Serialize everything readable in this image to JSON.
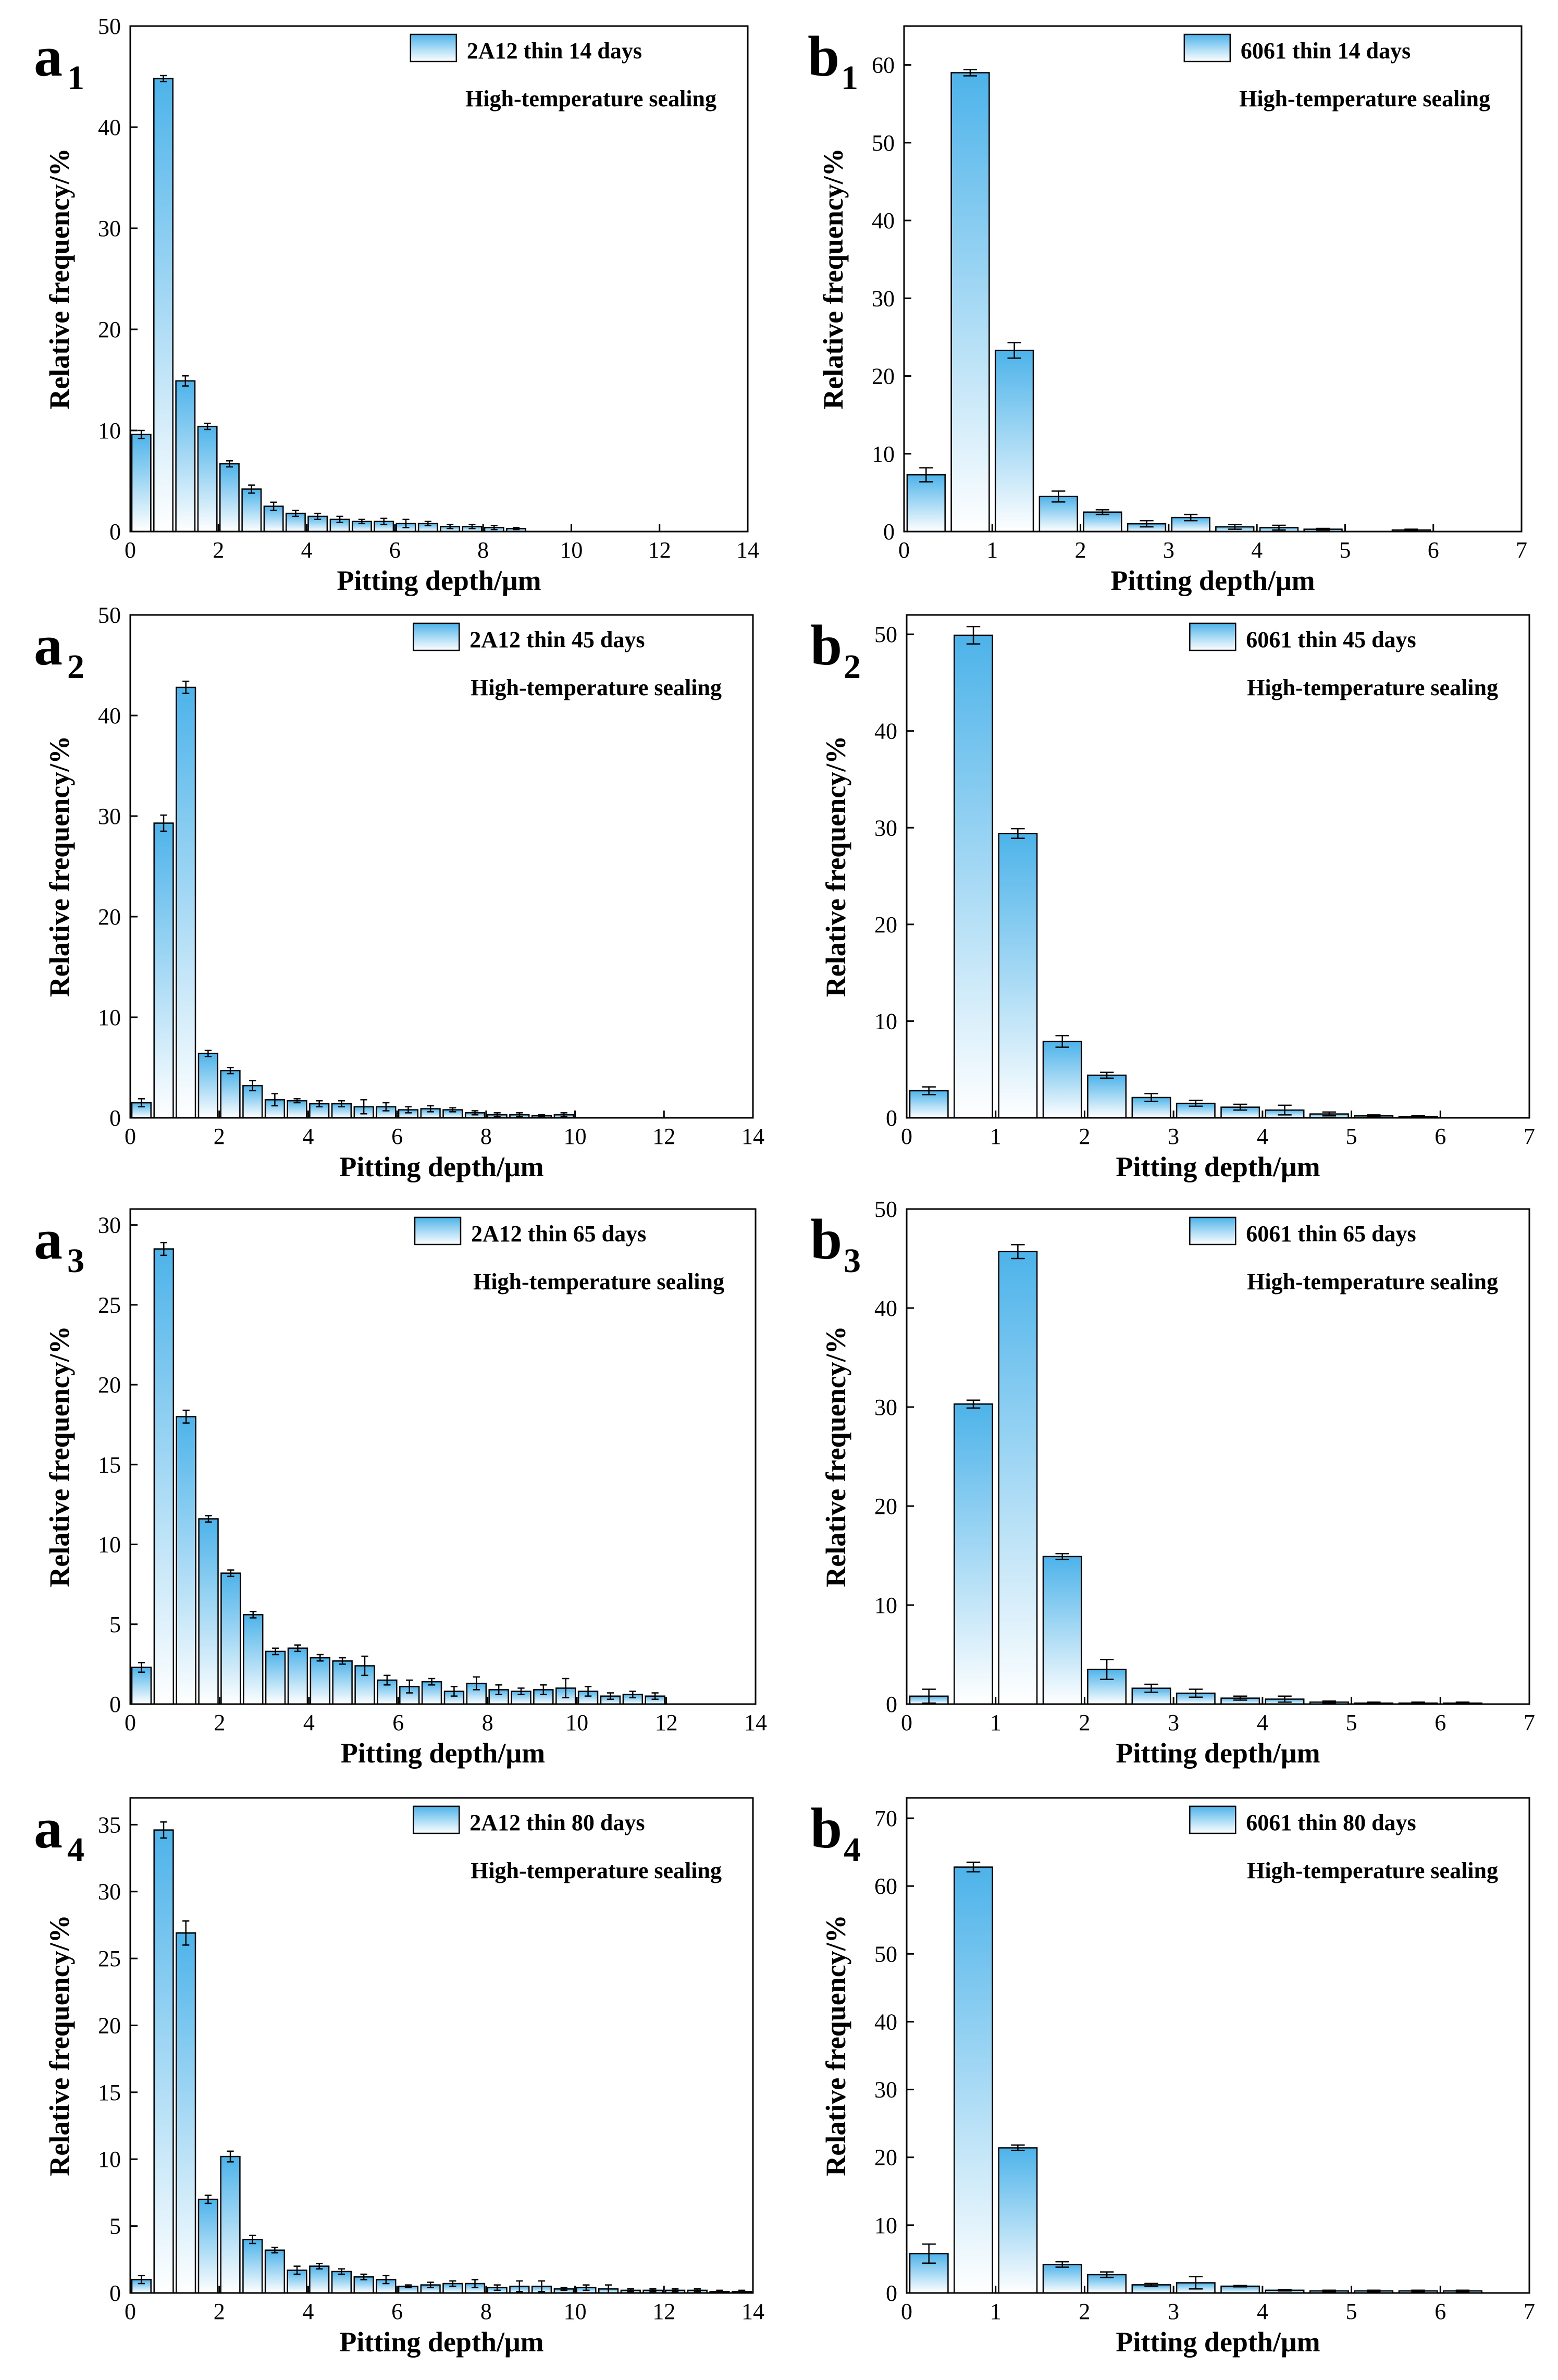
{
  "styles": {
    "bar_top_color": "#4db3ea",
    "bar_bottom_color": "#ffffff",
    "axis_color": "#000000"
  },
  "chart_data": [
    {
      "type": "bar",
      "panel": "a",
      "panel_sub": "1",
      "legend": "2A12 thin  14 days",
      "annotation": "High-temperature sealing",
      "xlabel": "Pitting depth/μm",
      "ylabel": "Relative frequency/%",
      "xlim": [
        0,
        14
      ],
      "ylim": [
        0,
        50
      ],
      "xticks": [
        0,
        2,
        4,
        6,
        8,
        10,
        12,
        14
      ],
      "yticks": [
        0,
        10,
        20,
        30,
        40,
        50
      ],
      "bin_width": 0.5,
      "x": [
        0.25,
        0.75,
        1.25,
        1.75,
        2.25,
        2.75,
        3.25,
        3.75,
        4.25,
        4.75,
        5.25,
        5.75,
        6.25,
        6.75,
        7.25,
        7.75,
        8.25,
        8.75
      ],
      "values": [
        9.6,
        44.8,
        14.9,
        10.4,
        6.7,
        4.2,
        2.5,
        1.8,
        1.5,
        1.2,
        1.0,
        1.0,
        0.8,
        0.8,
        0.5,
        0.5,
        0.4,
        0.3
      ],
      "errors": [
        0.4,
        0.3,
        0.5,
        0.3,
        0.3,
        0.4,
        0.4,
        0.3,
        0.3,
        0.3,
        0.2,
        0.3,
        0.4,
        0.2,
        0.2,
        0.2,
        0.2,
        0.1
      ]
    },
    {
      "type": "bar",
      "panel": "b",
      "panel_sub": "1",
      "legend": "6061 thin  14 days",
      "annotation": "High-temperature sealing",
      "xlabel": "Pitting depth/μm",
      "ylabel": "Relative frequency/%",
      "xlim": [
        0,
        7
      ],
      "ylim": [
        0,
        65
      ],
      "xticks": [
        0,
        1,
        2,
        3,
        4,
        5,
        6,
        7
      ],
      "yticks": [
        0,
        10,
        20,
        30,
        40,
        50,
        60
      ],
      "bin_width": 0.5,
      "x": [
        0.25,
        0.75,
        1.25,
        1.75,
        2.25,
        2.75,
        3.25,
        3.75,
        4.25,
        4.75,
        5.25,
        5.75
      ],
      "values": [
        7.3,
        59.0,
        23.3,
        4.5,
        2.5,
        1.0,
        1.8,
        0.6,
        0.5,
        0.3,
        0.0,
        0.2
      ],
      "errors": [
        0.9,
        0.4,
        1.0,
        0.7,
        0.3,
        0.4,
        0.4,
        0.3,
        0.3,
        0.1,
        0.0,
        0.1
      ]
    },
    {
      "type": "bar",
      "panel": "a",
      "panel_sub": "2",
      "legend": "2A12 thin  45 days",
      "annotation": "High-temperature sealing",
      "xlabel": "Pitting depth/μm",
      "ylabel": "Relative frequency/%",
      "xlim": [
        0,
        14
      ],
      "ylim": [
        0,
        50
      ],
      "xticks": [
        0,
        2,
        4,
        6,
        8,
        10,
        12,
        14
      ],
      "yticks": [
        0,
        10,
        20,
        30,
        40,
        50
      ],
      "bin_width": 0.5,
      "x": [
        0.25,
        0.75,
        1.25,
        1.75,
        2.25,
        2.75,
        3.25,
        3.75,
        4.25,
        4.75,
        5.25,
        5.75,
        6.25,
        6.75,
        7.25,
        7.75,
        8.25,
        8.75,
        9.25,
        9.75
      ],
      "values": [
        1.5,
        29.3,
        42.8,
        6.4,
        4.7,
        3.2,
        1.8,
        1.7,
        1.4,
        1.4,
        1.1,
        1.1,
        0.8,
        0.9,
        0.8,
        0.5,
        0.3,
        0.3,
        0.2,
        0.3
      ],
      "errors": [
        0.4,
        0.8,
        0.6,
        0.3,
        0.3,
        0.5,
        0.6,
        0.2,
        0.3,
        0.3,
        0.7,
        0.4,
        0.3,
        0.3,
        0.2,
        0.2,
        0.2,
        0.2,
        0.1,
        0.2
      ]
    },
    {
      "type": "bar",
      "panel": "b",
      "panel_sub": "2",
      "legend": "6061 thin  45 days",
      "annotation": "High-temperature sealing",
      "xlabel": "Pitting depth/μm",
      "ylabel": "Relative frequency/%",
      "xlim": [
        0,
        7
      ],
      "ylim": [
        0,
        52
      ],
      "xticks": [
        0,
        1,
        2,
        3,
        4,
        5,
        6,
        7
      ],
      "yticks": [
        0,
        10,
        20,
        30,
        40,
        50
      ],
      "bin_width": 0.5,
      "x": [
        0.25,
        0.75,
        1.25,
        1.75,
        2.25,
        2.75,
        3.25,
        3.75,
        4.25,
        4.75,
        5.25,
        5.75
      ],
      "values": [
        2.8,
        49.9,
        29.4,
        7.9,
        4.4,
        2.1,
        1.5,
        1.1,
        0.8,
        0.4,
        0.2,
        0.1
      ],
      "errors": [
        0.4,
        0.9,
        0.5,
        0.6,
        0.3,
        0.4,
        0.3,
        0.3,
        0.5,
        0.2,
        0.1,
        0.1
      ]
    },
    {
      "type": "bar",
      "panel": "a",
      "panel_sub": "3",
      "legend": "2A12 thin  65 days",
      "annotation": "High-temperature sealing",
      "xlabel": "Pitting depth/μm",
      "ylabel": "Relative frequency/%",
      "xlim": [
        0,
        14
      ],
      "ylim": [
        0,
        31
      ],
      "xticks": [
        0,
        2,
        4,
        6,
        8,
        10,
        12,
        14
      ],
      "yticks": [
        0,
        5,
        10,
        15,
        20,
        25,
        30
      ],
      "bin_width": 0.5,
      "x": [
        0.25,
        0.75,
        1.25,
        1.75,
        2.25,
        2.75,
        3.25,
        3.75,
        4.25,
        4.75,
        5.25,
        5.75,
        6.25,
        6.75,
        7.25,
        7.75,
        8.25,
        8.75,
        9.25,
        9.75,
        10.25,
        10.75,
        11.25,
        11.75
      ],
      "values": [
        2.3,
        28.5,
        18.0,
        11.6,
        8.2,
        5.6,
        3.3,
        3.5,
        2.9,
        2.7,
        2.4,
        1.5,
        1.1,
        1.4,
        0.8,
        1.3,
        0.9,
        0.8,
        0.9,
        1.0,
        0.8,
        0.5,
        0.6,
        0.5
      ],
      "errors": [
        0.3,
        0.4,
        0.4,
        0.2,
        0.2,
        0.2,
        0.2,
        0.2,
        0.2,
        0.2,
        0.6,
        0.3,
        0.4,
        0.2,
        0.3,
        0.4,
        0.3,
        0.2,
        0.3,
        0.6,
        0.3,
        0.2,
        0.2,
        0.2
      ]
    },
    {
      "type": "bar",
      "panel": "b",
      "panel_sub": "3",
      "legend": "6061 thin  65 days",
      "annotation": "High-temperature sealing",
      "xlabel": "Pitting depth/μm",
      "ylabel": "Relative frequency/%",
      "xlim": [
        0,
        7
      ],
      "ylim": [
        0,
        50
      ],
      "xticks": [
        0,
        1,
        2,
        3,
        4,
        5,
        6,
        7
      ],
      "yticks": [
        0,
        10,
        20,
        30,
        40,
        50
      ],
      "bin_width": 0.5,
      "x": [
        0.25,
        0.75,
        1.25,
        1.75,
        2.25,
        2.75,
        3.25,
        3.75,
        4.25,
        4.75,
        5.25,
        5.75,
        6.25
      ],
      "values": [
        0.8,
        30.3,
        45.7,
        14.9,
        3.5,
        1.6,
        1.1,
        0.6,
        0.5,
        0.2,
        0.1,
        0.1,
        0.1
      ],
      "errors": [
        0.7,
        0.4,
        0.7,
        0.3,
        1.0,
        0.4,
        0.4,
        0.2,
        0.3,
        0.1,
        0.1,
        0.1,
        0.1
      ]
    },
    {
      "type": "bar",
      "panel": "a",
      "panel_sub": "4",
      "legend": "2A12 thin  80 days",
      "annotation": "High-temperature sealing",
      "xlabel": "Pitting depth/μm",
      "ylabel": "Relative frequency/%",
      "xlim": [
        0,
        14
      ],
      "ylim": [
        0,
        37
      ],
      "xticks": [
        0,
        2,
        4,
        6,
        8,
        10,
        12,
        14
      ],
      "yticks": [
        0,
        5,
        10,
        15,
        20,
        25,
        30,
        35
      ],
      "bin_width": 0.5,
      "x": [
        0.25,
        0.75,
        1.25,
        1.75,
        2.25,
        2.75,
        3.25,
        3.75,
        4.25,
        4.75,
        5.25,
        5.75,
        6.25,
        6.75,
        7.25,
        7.75,
        8.25,
        8.75,
        9.25,
        9.75,
        10.25,
        10.75,
        11.25,
        11.75,
        12.25,
        12.75,
        13.25,
        13.75
      ],
      "values": [
        1.0,
        34.6,
        26.9,
        7.0,
        10.2,
        4.0,
        3.2,
        1.7,
        2.0,
        1.6,
        1.2,
        1.0,
        0.5,
        0.6,
        0.7,
        0.7,
        0.4,
        0.5,
        0.5,
        0.3,
        0.4,
        0.3,
        0.2,
        0.2,
        0.2,
        0.2,
        0.1,
        0.1
      ],
      "errors": [
        0.3,
        0.6,
        0.9,
        0.3,
        0.4,
        0.3,
        0.2,
        0.3,
        0.2,
        0.2,
        0.2,
        0.3,
        0.1,
        0.2,
        0.2,
        0.3,
        0.2,
        0.4,
        0.4,
        0.1,
        0.2,
        0.3,
        0.1,
        0.1,
        0.1,
        0.1,
        0.1,
        0.1
      ]
    },
    {
      "type": "bar",
      "panel": "b",
      "panel_sub": "4",
      "legend": "6061 thin  80 days",
      "annotation": "High-temperature sealing",
      "xlabel": "Pitting depth/μm",
      "ylabel": "Relative frequency/%",
      "xlim": [
        0,
        7
      ],
      "ylim": [
        0,
        73
      ],
      "xticks": [
        0,
        1,
        2,
        3,
        4,
        5,
        6,
        7
      ],
      "yticks": [
        0,
        10,
        20,
        30,
        40,
        50,
        60,
        70
      ],
      "bin_width": 0.5,
      "x": [
        0.25,
        0.75,
        1.25,
        1.75,
        2.25,
        2.75,
        3.25,
        3.75,
        4.25,
        4.75,
        5.25,
        5.75,
        6.25
      ],
      "values": [
        5.8,
        62.8,
        21.4,
        4.2,
        2.7,
        1.2,
        1.5,
        1.0,
        0.4,
        0.3,
        0.3,
        0.3,
        0.3
      ],
      "errors": [
        1.4,
        0.7,
        0.4,
        0.4,
        0.4,
        0.2,
        0.9,
        0.1,
        0.1,
        0.1,
        0.1,
        0.1,
        0.1
      ]
    }
  ]
}
